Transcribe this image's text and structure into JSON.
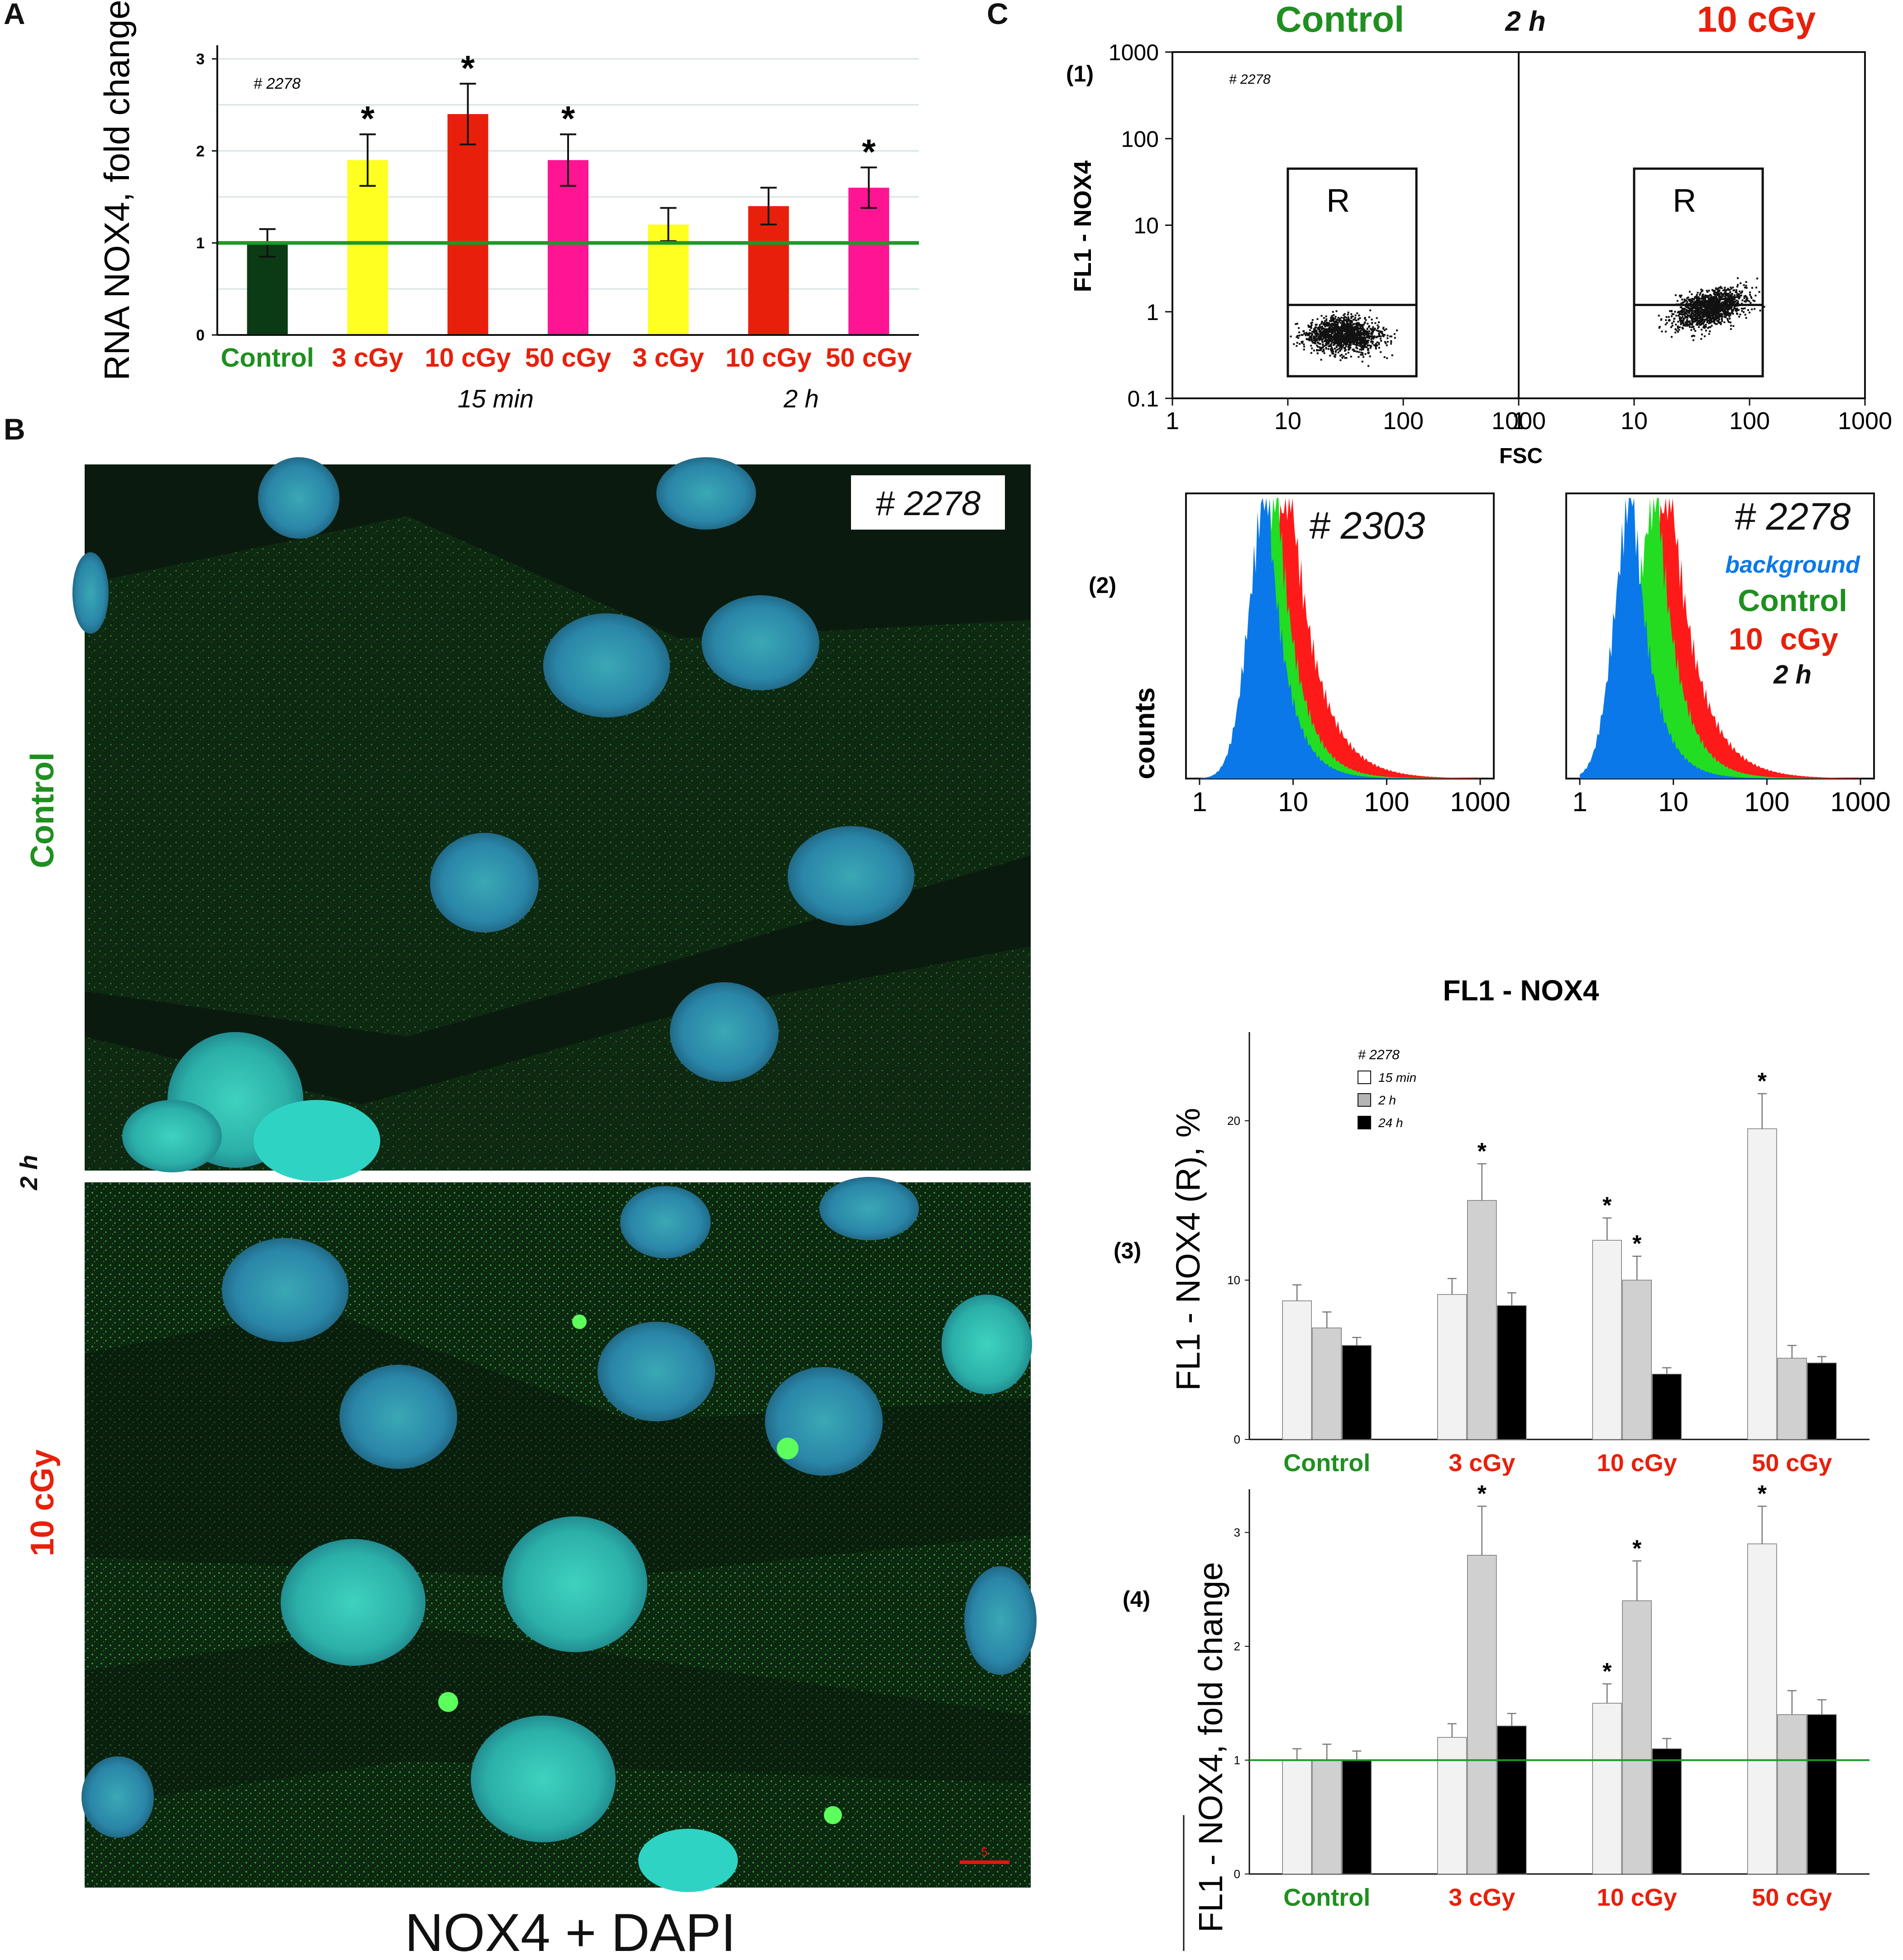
{
  "colors": {
    "green": "#1f8f1f",
    "red": "#e8200b",
    "yellow": "#ffff22",
    "magenta": "#ff1493",
    "dark_green": "#0b3b14",
    "blue": "#0a78e8",
    "hist_green": "#22dd22",
    "hist_red": "#ff1a1a"
  },
  "panels": {
    "A": "A",
    "B": "B",
    "C": "C"
  },
  "panel_B": {
    "sample_id": "# 2278",
    "label_control": "Control",
    "label_time": "2 h",
    "label_dose": "10 cGy",
    "scale_bar": "5",
    "caption": "NOX4 + DAPI"
  },
  "panel_C": {
    "header_control": "Control",
    "header_time": "2 h",
    "header_dose": "10 cGy",
    "sub1": "(1)",
    "sub2": "(2)",
    "sub3": "(3)",
    "sub4": "(4)",
    "scatter_id": "# 2278",
    "scatter_ylabel": "FL1 - NOX4",
    "scatter_xlabel": "FSC",
    "gate_label": "R",
    "hist_ylabel": "counts",
    "hist_xlabel": "FL1 - NOX4",
    "hist_left_id": "# 2303",
    "hist_right_id": "# 2278",
    "legend_background": "background",
    "legend_control": "Control",
    "legend_dose": "10  cGy",
    "legend_time": "2 h"
  },
  "chart_data": [
    {
      "type": "bar",
      "panel": "A",
      "annotation": "# 2278",
      "ylabel": "RNA NOX4, fold change",
      "ylim": [
        0,
        3
      ],
      "yticks": [
        "0",
        "1",
        "2",
        "3"
      ],
      "categories": [
        "Control",
        "3 cGy",
        "10 cGy",
        "50 cGy",
        "3 cGy",
        "10 cGy",
        "50 cGy"
      ],
      "groups": [
        "15 min",
        "2 h"
      ],
      "values": [
        1.0,
        1.9,
        2.4,
        1.9,
        1.2,
        1.4,
        1.6
      ],
      "errors": [
        0.15,
        0.28,
        0.33,
        0.28,
        0.18,
        0.2,
        0.22
      ],
      "significant": [
        false,
        true,
        true,
        true,
        false,
        false,
        true
      ],
      "baseline": 1,
      "star": "*"
    },
    {
      "type": "scatter",
      "panel": "C(1)",
      "subplots": [
        "Control",
        "10 cGy"
      ],
      "xscale": "log",
      "yscale": "log",
      "xticks": [
        "1",
        "10",
        "100",
        "1000"
      ],
      "yticks": [
        "0.1",
        "1",
        "10",
        "100",
        "1000"
      ],
      "gate": "R"
    },
    {
      "type": "area",
      "panel": "C(2)",
      "xscale": "log",
      "xticks": [
        "1",
        "10",
        "100",
        "1000"
      ],
      "series": [
        "background",
        "Control",
        "10 cGy"
      ],
      "peaks": [
        5.5,
        7,
        10
      ]
    },
    {
      "type": "bar",
      "panel": "C(3)",
      "annotation": "# 2278",
      "ylabel": "FL1 - NOX4 (R), %",
      "ylim": [
        0,
        25
      ],
      "yticks": [
        "0",
        "10",
        "20"
      ],
      "categories": [
        "Control",
        "3 cGy",
        "10 cGy",
        "50 cGy"
      ],
      "series": [
        {
          "name": "15 min",
          "values": [
            8.7,
            9.1,
            12.5,
            19.5
          ],
          "errors": [
            1.0,
            1.0,
            1.4,
            2.2
          ],
          "significant": [
            false,
            false,
            true,
            true
          ]
        },
        {
          "name": "2 h",
          "values": [
            7.0,
            15.0,
            10.0,
            5.1
          ],
          "errors": [
            1.0,
            2.3,
            1.5,
            0.8
          ],
          "significant": [
            false,
            true,
            true,
            false
          ]
        },
        {
          "name": "24 h",
          "values": [
            5.9,
            8.4,
            4.1,
            4.8
          ],
          "errors": [
            0.5,
            0.8,
            0.4,
            0.4
          ],
          "significant": [
            false,
            false,
            false,
            false
          ]
        }
      ],
      "star": "*"
    },
    {
      "type": "bar",
      "panel": "C(4)",
      "ylabel": "FL1 - NOX4, fold change",
      "ylim": [
        0,
        3.3
      ],
      "yticks": [
        "0",
        "1",
        "2",
        "3"
      ],
      "categories": [
        "Control",
        "3 cGy",
        "10 cGy",
        "50 cGy"
      ],
      "series": [
        {
          "name": "15 min",
          "values": [
            1.0,
            1.2,
            1.5,
            2.9
          ],
          "errors": [
            0.1,
            0.12,
            0.17,
            0.33
          ],
          "significant": [
            false,
            false,
            true,
            true
          ]
        },
        {
          "name": "2 h",
          "values": [
            1.0,
            2.8,
            2.4,
            1.4
          ],
          "errors": [
            0.14,
            0.43,
            0.35,
            0.21
          ],
          "significant": [
            false,
            true,
            true,
            false
          ]
        },
        {
          "name": "24 h",
          "values": [
            1.0,
            1.3,
            1.1,
            1.4
          ],
          "errors": [
            0.08,
            0.11,
            0.09,
            0.13
          ],
          "significant": [
            false,
            false,
            false,
            false
          ]
        }
      ],
      "baseline": 1,
      "star": "*"
    }
  ]
}
